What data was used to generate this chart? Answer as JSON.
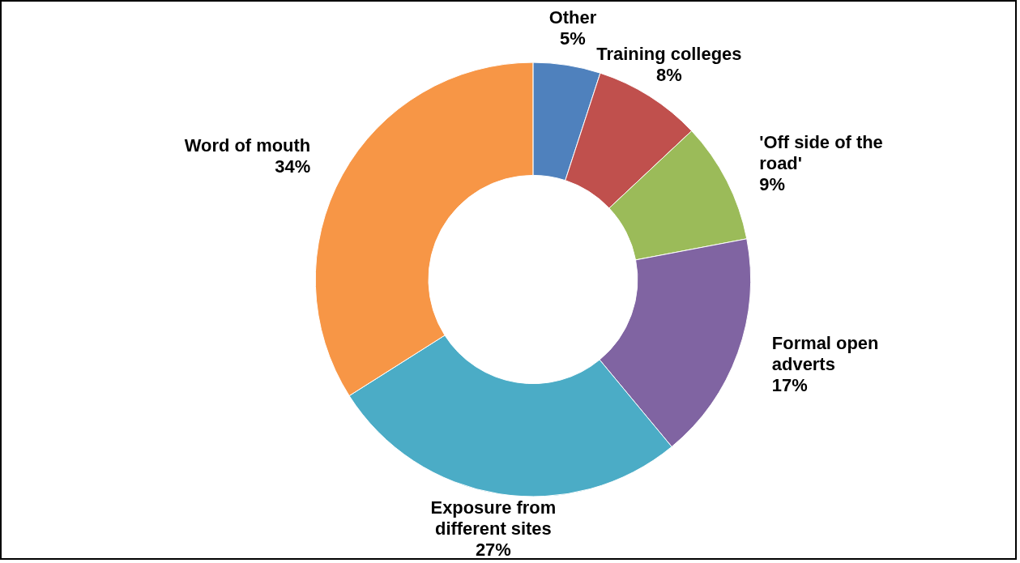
{
  "chart_data": {
    "type": "donut",
    "categories": [
      "Other",
      "Training colleges",
      "'Off side of the road'",
      "Formal open adverts",
      "Exposure from different sites",
      "Word of mouth"
    ],
    "values": [
      5,
      8,
      9,
      17,
      27,
      34
    ],
    "value_labels": [
      "5%",
      "8%",
      "9%",
      "17%",
      "27%",
      "34%"
    ],
    "colors": [
      "#4f81bd",
      "#c0504d",
      "#9bbb59",
      "#8064a2",
      "#4bacc6",
      "#f79646"
    ],
    "legend": false
  }
}
